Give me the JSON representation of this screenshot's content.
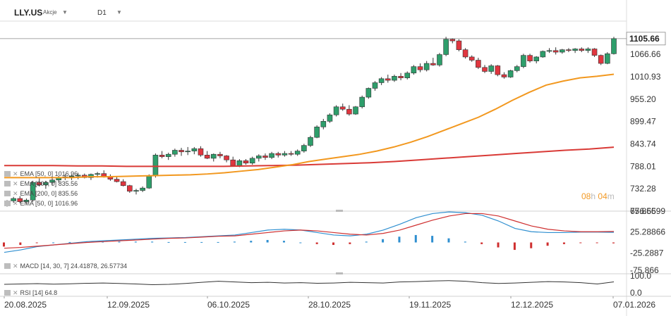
{
  "header": {
    "symbol": "LLY.US",
    "instrument_type": "Akcje",
    "timeframe": "D1"
  },
  "timer": {
    "hours": "08",
    "h_unit": "h",
    "minutes": "04",
    "m_unit": "m"
  },
  "legends": {
    "ema50_a": "EMA [50, 0]  1016.96",
    "ema200_a": "EMA [200, 0]  835.56",
    "ema200_b": "EMA [200, 0]  835.56",
    "ema50_b": "EMA [50, 0]  1016.96",
    "macd": "MACD [14, 30, 7]  24.41878,   26.57734",
    "rsi": "RSI [14]  64.8"
  },
  "colors": {
    "up": "#2e9e6b",
    "down": "#e0363f",
    "ema50": "#f2981f",
    "ema200": "#d93a36",
    "macd_line": "#2f8fd0",
    "signal_line": "#cf2f2f",
    "rsi_line": "#333333"
  },
  "chart_data": [
    {
      "type": "candlestick",
      "title": "LLY.US D1",
      "y_ticks": [
        1105.66,
        1066.66,
        1010.93,
        955.2,
        899.47,
        843.74,
        788.01,
        732.28,
        676.56
      ],
      "current_price": 1105.66,
      "x_ticks": [
        "20.08.2025",
        "12.09.2025",
        "06.10.2025",
        "28.10.2025",
        "19.11.2025",
        "12.12.2025",
        "07.01.2026"
      ],
      "candles_approx": [
        [
          690,
          704,
          688,
          702
        ],
        [
          702,
          712,
          697,
          708
        ],
        [
          708,
          714,
          696,
          700
        ],
        [
          700,
          708,
          694,
          704
        ],
        [
          704,
          752,
          700,
          748
        ],
        [
          748,
          758,
          738,
          742
        ],
        [
          742,
          752,
          732,
          748
        ],
        [
          748,
          760,
          740,
          754
        ],
        [
          754,
          764,
          748,
          760
        ],
        [
          760,
          768,
          754,
          762
        ],
        [
          762,
          768,
          754,
          764
        ],
        [
          764,
          772,
          756,
          766
        ],
        [
          766,
          770,
          758,
          760
        ],
        [
          760,
          770,
          754,
          768
        ],
        [
          768,
          774,
          760,
          770
        ],
        [
          770,
          778,
          760,
          762
        ],
        [
          762,
          768,
          752,
          756
        ],
        [
          756,
          764,
          748,
          750
        ],
        [
          750,
          756,
          738,
          740
        ],
        [
          740,
          742,
          722,
          726
        ],
        [
          726,
          732,
          718,
          728
        ],
        [
          728,
          738,
          724,
          734
        ],
        [
          734,
          768,
          732,
          764
        ],
        [
          764,
          820,
          760,
          816
        ],
        [
          816,
          826,
          808,
          812
        ],
        [
          812,
          822,
          804,
          818
        ],
        [
          818,
          832,
          812,
          828
        ],
        [
          828,
          834,
          814,
          824
        ],
        [
          824,
          836,
          816,
          826
        ],
        [
          826,
          836,
          818,
          832
        ],
        [
          832,
          838,
          812,
          816
        ],
        [
          816,
          826,
          806,
          808
        ],
        [
          808,
          820,
          800,
          818
        ],
        [
          818,
          824,
          808,
          814
        ],
        [
          814,
          816,
          798,
          804
        ],
        [
          804,
          812,
          788,
          790
        ],
        [
          790,
          806,
          786,
          802
        ],
        [
          802,
          806,
          792,
          796
        ],
        [
          796,
          812,
          792,
          808
        ],
        [
          808,
          818,
          800,
          814
        ],
        [
          814,
          820,
          804,
          810
        ],
        [
          810,
          824,
          806,
          820
        ],
        [
          820,
          824,
          810,
          816
        ],
        [
          816,
          826,
          812,
          820
        ],
        [
          820,
          826,
          814,
          818
        ],
        [
          818,
          830,
          814,
          826
        ],
        [
          826,
          844,
          822,
          840
        ],
        [
          840,
          864,
          836,
          860
        ],
        [
          860,
          890,
          858,
          886
        ],
        [
          886,
          906,
          880,
          900
        ],
        [
          900,
          920,
          896,
          916
        ],
        [
          916,
          940,
          912,
          936
        ],
        [
          936,
          944,
          926,
          930
        ],
        [
          930,
          940,
          914,
          918
        ],
        [
          918,
          938,
          916,
          936
        ],
        [
          936,
          964,
          932,
          960
        ],
        [
          960,
          984,
          956,
          982
        ],
        [
          982,
          1000,
          976,
          996
        ],
        [
          996,
          1010,
          990,
          1006
        ],
        [
          1006,
          1016,
          996,
          1002
        ],
        [
          1002,
          1016,
          998,
          1012
        ],
        [
          1012,
          1020,
          1002,
          1008
        ],
        [
          1008,
          1024,
          1004,
          1020
        ],
        [
          1020,
          1040,
          1016,
          1036
        ],
        [
          1036,
          1044,
          1022,
          1028
        ],
        [
          1028,
          1050,
          1024,
          1044
        ],
        [
          1044,
          1058,
          1038,
          1040
        ],
        [
          1040,
          1070,
          1036,
          1066
        ],
        [
          1066,
          1110,
          1062,
          1104
        ],
        [
          1104,
          1106,
          1094,
          1100
        ],
        [
          1100,
          1104,
          1074,
          1078
        ],
        [
          1078,
          1082,
          1056,
          1060
        ],
        [
          1060,
          1064,
          1048,
          1052
        ],
        [
          1052,
          1058,
          1030,
          1034
        ],
        [
          1034,
          1040,
          1020,
          1024
        ],
        [
          1024,
          1042,
          1018,
          1038
        ],
        [
          1038,
          1040,
          1012,
          1016
        ],
        [
          1016,
          1022,
          1006,
          1010
        ],
        [
          1010,
          1028,
          1008,
          1026
        ],
        [
          1026,
          1040,
          1022,
          1036
        ],
        [
          1036,
          1068,
          1032,
          1064
        ],
        [
          1064,
          1068,
          1046,
          1050
        ],
        [
          1050,
          1062,
          1044,
          1060
        ],
        [
          1060,
          1076,
          1058,
          1074
        ],
        [
          1074,
          1082,
          1070,
          1076
        ],
        [
          1076,
          1084,
          1066,
          1072
        ],
        [
          1072,
          1080,
          1068,
          1078
        ],
        [
          1078,
          1082,
          1072,
          1076
        ],
        [
          1076,
          1082,
          1070,
          1080
        ],
        [
          1080,
          1084,
          1072,
          1076
        ],
        [
          1076,
          1084,
          1070,
          1080
        ],
        [
          1080,
          1082,
          1060,
          1064
        ],
        [
          1064,
          1066,
          1040,
          1044
        ],
        [
          1044,
          1072,
          1042,
          1068
        ],
        [
          1068,
          1110,
          1066,
          1105.66
        ]
      ],
      "ema50_approx": [
        760,
        760,
        760,
        760,
        760,
        762,
        762,
        763,
        764,
        765,
        766,
        767,
        769,
        772,
        776,
        780,
        786,
        792,
        800,
        806,
        812,
        818,
        826,
        836,
        848,
        862,
        878,
        894,
        910,
        930,
        952,
        972,
        990,
        1000,
        1008,
        1012,
        1016.96
      ],
      "ema200_approx": [
        790,
        790,
        790,
        789,
        789,
        788,
        788,
        788,
        788,
        788,
        789,
        790,
        791,
        793,
        795,
        797,
        800,
        804,
        808,
        812,
        816,
        820,
        824,
        828,
        831,
        835.56
      ]
    },
    {
      "type": "line",
      "title": "MACD [14, 30, 7]",
      "y_ticks": [
        75.86599,
        25.28866,
        -25.2887,
        -75.866
      ],
      "series": [
        {
          "name": "MACD",
          "values": [
            -24,
            -18,
            -10,
            -6,
            -2,
            2,
            4,
            6,
            8,
            10,
            11,
            12,
            14,
            16,
            18,
            24,
            30,
            32,
            30,
            24,
            18,
            16,
            20,
            30,
            44,
            60,
            70,
            74,
            72,
            66,
            52,
            34,
            26,
            24,
            24,
            25,
            25,
            24.42
          ]
        },
        {
          "name": "Signal",
          "values": [
            -14,
            -12,
            -9,
            -6,
            -3,
            0,
            2,
            4,
            6,
            8,
            10,
            11,
            13,
            15,
            16,
            20,
            24,
            28,
            30,
            28,
            24,
            20,
            18,
            22,
            30,
            42,
            54,
            64,
            70,
            70,
            64,
            52,
            40,
            32,
            28,
            26,
            26,
            26.58
          ]
        }
      ]
    },
    {
      "type": "line",
      "title": "RSI [14]",
      "y_ticks": [
        100.0,
        0.0
      ],
      "series": [
        {
          "name": "RSI",
          "values": [
            50,
            52,
            54,
            51,
            53,
            56,
            58,
            55,
            52,
            48,
            50,
            55,
            62,
            68,
            64,
            60,
            62,
            58,
            60,
            56,
            58,
            62,
            60,
            58,
            64,
            66,
            70,
            72,
            68,
            60,
            55,
            58,
            62,
            66,
            64,
            60,
            52,
            64.8
          ]
        }
      ]
    }
  ]
}
